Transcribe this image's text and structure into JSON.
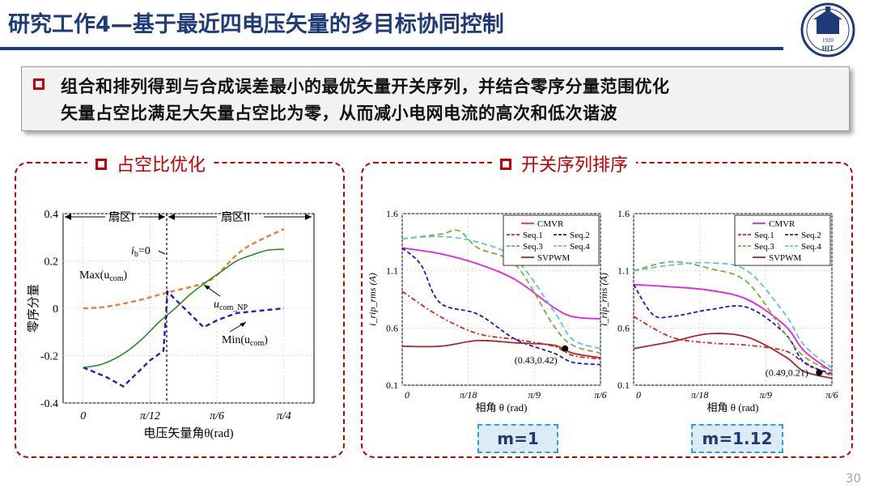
{
  "slide": {
    "title": "研究工作4—基于最近四电压矢量的多目标协同控制",
    "summary_line1": "组合和排列得到与合成误差最小的最优矢量开关序列，并结合零序分量范围优化",
    "summary_line2": "矢量占空比满足大矢量占空比为零，从而减小电网电流的高次和低次谐波",
    "page_number": "30",
    "logo_year": "1920",
    "logo_letters": "HIT"
  },
  "left_panel": {
    "title": "占空比优化",
    "sector1": "扇区I",
    "sector2": "扇区II",
    "ib_label": "i",
    "ib_sub": "b",
    "ib_suffix": "=0",
    "max_label": "Max(u",
    "max_sub": "com",
    "min_label": "Min(u",
    "min_sub": "com",
    "np_label": "u",
    "np_sub": "com_NP",
    "close_paren": ")"
  },
  "right_panel": {
    "title": "开关序列排序",
    "m_labels": [
      "m=1",
      "m=1.12"
    ]
  },
  "colors": {
    "title_blue": "#1f3a78",
    "accent_red": "#c00000",
    "max_orange": "#ed7d31",
    "min_blue": "#1f1fc0",
    "np_green": "#2e8b2e",
    "cmvr": "#e61ee6",
    "seq1": "#dd2222",
    "seq2": "#1a1ac8",
    "seq3": "#7cae3c",
    "seq4": "#5bc4e6",
    "svpwm": "#a52a2a"
  },
  "chart_data": [
    {
      "type": "line",
      "title": "",
      "xlabel": "电压矢量角θ(rad)",
      "ylabel": "零序分量",
      "xlim": [
        0,
        0.2618
      ],
      "ylim": [
        -0.4,
        0.4
      ],
      "xticks": [
        "0",
        "π/12",
        "π/6",
        "π/4"
      ],
      "yticks": [
        "-0.4",
        "-0.2",
        "0",
        "0.2",
        "0.4"
      ],
      "grid": true,
      "series": [
        {
          "name": "Max(ucom)",
          "x": [
            0,
            0.02,
            0.04,
            0.06,
            0.08,
            0.1,
            0.12,
            0.14,
            0.16,
            0.1745,
            0.2094,
            0.2618
          ],
          "y": [
            0.0,
            0.003,
            0.012,
            0.025,
            0.04,
            0.058,
            0.075,
            0.09,
            0.11,
            0.14,
            0.25,
            0.335
          ]
        },
        {
          "name": "Min(ucom)",
          "x": [
            0,
            0.03,
            0.0524,
            0.0873,
            0.1047,
            0.11,
            0.1571,
            0.175,
            0.2,
            0.2618
          ],
          "y": [
            -0.25,
            -0.29,
            -0.33,
            -0.22,
            -0.18,
            0.07,
            -0.08,
            -0.05,
            -0.02,
            0.0
          ],
          "style": "dashed"
        },
        {
          "name": "ucom_NP",
          "x": [
            0,
            0.02,
            0.04,
            0.06,
            0.08,
            0.1,
            0.12,
            0.14,
            0.16,
            0.18,
            0.2,
            0.22,
            0.24,
            0.2618
          ],
          "y": [
            -0.25,
            -0.24,
            -0.215,
            -0.175,
            -0.12,
            -0.055,
            0.0,
            0.06,
            0.11,
            0.155,
            0.2,
            0.225,
            0.245,
            0.25
          ]
        }
      ],
      "annotations": [
        "扇区I",
        "扇区II",
        "ib=0",
        "Max(ucom)",
        "Min(ucom)",
        "ucom_NP"
      ]
    },
    {
      "type": "line",
      "title": "",
      "xlabel": "相角 θ (rad)",
      "ylabel": "i_rip_rms (A)",
      "xlim": [
        0,
        0.5236
      ],
      "ylim": [
        0.1,
        1.6
      ],
      "xticks": [
        "0",
        "π/18",
        "π/9",
        "π/6"
      ],
      "yticks": [
        "0.1",
        "0.6",
        "1.1",
        "1.6"
      ],
      "grid": true,
      "legend": "top-right",
      "series": [
        {
          "name": "CMVR",
          "x": [
            0,
            0.1,
            0.2,
            0.3,
            0.4,
            0.45,
            0.5236
          ],
          "y": [
            1.3,
            1.25,
            1.16,
            1.02,
            0.78,
            0.7,
            0.68
          ]
        },
        {
          "name": "Seq.1",
          "x": [
            0,
            0.1,
            0.2,
            0.3,
            0.4,
            0.45,
            0.5236
          ],
          "y": [
            0.92,
            0.7,
            0.55,
            0.5,
            0.44,
            0.36,
            0.33
          ]
        },
        {
          "name": "Seq.2",
          "x": [
            0,
            0.05,
            0.1,
            0.2,
            0.3,
            0.4,
            0.45,
            0.5236
          ],
          "y": [
            1.3,
            1.15,
            0.82,
            0.72,
            0.5,
            0.38,
            0.3,
            0.28
          ]
        },
        {
          "name": "Seq.3",
          "x": [
            0,
            0.1,
            0.15,
            0.2,
            0.3,
            0.4,
            0.45,
            0.5236
          ],
          "y": [
            1.38,
            1.42,
            1.45,
            1.3,
            1.15,
            0.62,
            0.45,
            0.38
          ]
        },
        {
          "name": "Seq.4",
          "x": [
            0,
            0.1,
            0.2,
            0.3,
            0.4,
            0.45,
            0.5236
          ],
          "y": [
            1.38,
            1.4,
            1.35,
            1.2,
            0.75,
            0.5,
            0.42
          ]
        },
        {
          "name": "SVPWM",
          "x": [
            0,
            0.1,
            0.2,
            0.3,
            0.4,
            0.45,
            0.5236
          ],
          "y": [
            0.44,
            0.44,
            0.49,
            0.47,
            0.45,
            0.38,
            0.34
          ]
        }
      ],
      "annotations": [
        "(0.43,0.42)",
        "m=1"
      ]
    },
    {
      "type": "line",
      "title": "",
      "xlabel": "相角 θ (rad)",
      "ylabel": "i_rip_rms (A)",
      "xlim": [
        0,
        0.5236
      ],
      "ylim": [
        0.1,
        1.6
      ],
      "xticks": [
        "0",
        "π/18",
        "π/9",
        "π/6"
      ],
      "yticks": [
        "0.1",
        "0.6",
        "1.1",
        "1.6"
      ],
      "grid": true,
      "legend": "top-right",
      "series": [
        {
          "name": "CMVR",
          "x": [
            0,
            0.1,
            0.2,
            0.3,
            0.4,
            0.45,
            0.5236
          ],
          "y": [
            0.98,
            0.96,
            0.93,
            0.85,
            0.62,
            0.4,
            0.22
          ]
        },
        {
          "name": "Seq.1",
          "x": [
            0,
            0.1,
            0.2,
            0.3,
            0.4,
            0.45,
            0.5236
          ],
          "y": [
            0.7,
            0.52,
            0.47,
            0.45,
            0.4,
            0.3,
            0.18
          ]
        },
        {
          "name": "Seq.2",
          "x": [
            0,
            0.05,
            0.1,
            0.2,
            0.3,
            0.4,
            0.45,
            0.5236
          ],
          "y": [
            0.98,
            0.72,
            0.7,
            0.76,
            0.78,
            0.55,
            0.3,
            0.2
          ]
        },
        {
          "name": "Seq.3",
          "x": [
            0,
            0.1,
            0.2,
            0.3,
            0.4,
            0.45,
            0.5236
          ],
          "y": [
            1.1,
            1.18,
            1.12,
            1.0,
            0.55,
            0.35,
            0.22
          ]
        },
        {
          "name": "Seq.4",
          "x": [
            0,
            0.1,
            0.2,
            0.3,
            0.4,
            0.45,
            0.5236
          ],
          "y": [
            1.1,
            1.15,
            1.17,
            1.1,
            0.72,
            0.45,
            0.25
          ]
        },
        {
          "name": "SVPWM",
          "x": [
            0,
            0.1,
            0.2,
            0.3,
            0.4,
            0.45,
            0.5236
          ],
          "y": [
            0.42,
            0.48,
            0.55,
            0.52,
            0.35,
            0.22,
            0.16
          ]
        }
      ],
      "annotations": [
        "(0.49,0.21)",
        "m=1.12"
      ]
    }
  ]
}
